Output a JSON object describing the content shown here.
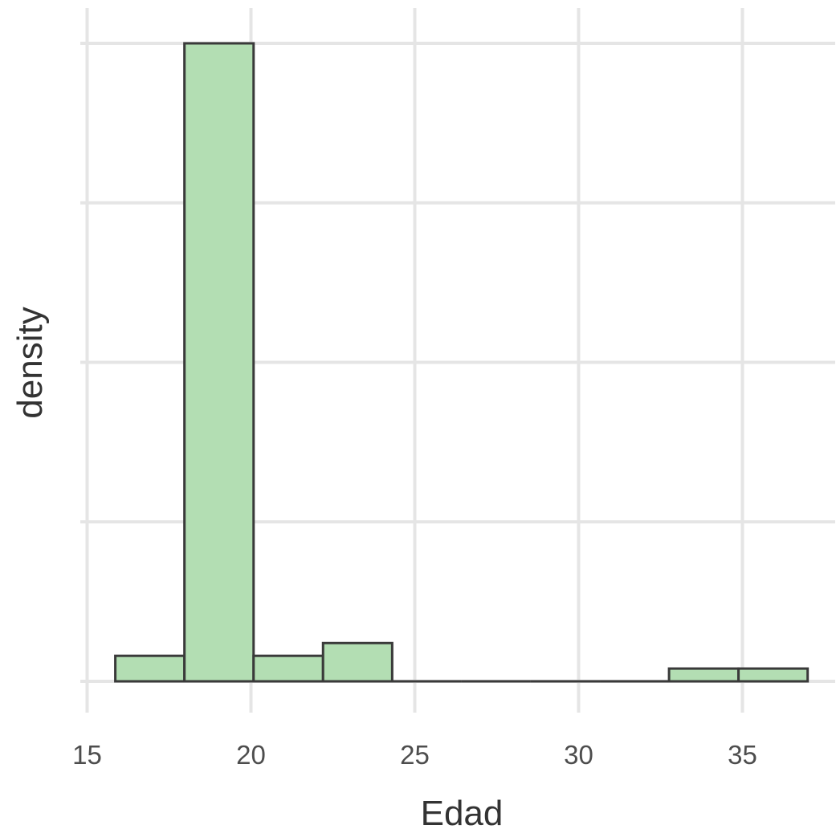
{
  "chart_data": {
    "type": "bar",
    "subtype": "histogram",
    "xlabel": "Edad",
    "ylabel": "density",
    "xlim": [
      15,
      37
    ],
    "x_ticks": [
      15,
      20,
      25,
      30,
      35
    ],
    "y_ticks_shown": false,
    "ylim": [
      0,
      1
    ],
    "grid": true,
    "bar_fill": "#b3deb3",
    "bar_edge": "#3a3a3a",
    "bins": [
      {
        "x0": 15.86,
        "x1": 17.97,
        "density": 0.04
      },
      {
        "x0": 17.97,
        "x1": 20.08,
        "density": 1.0
      },
      {
        "x0": 20.08,
        "x1": 22.2,
        "density": 0.04
      },
      {
        "x0": 22.2,
        "x1": 24.31,
        "density": 0.06
      },
      {
        "x0": 24.31,
        "x1": 26.42,
        "density": 0
      },
      {
        "x0": 26.42,
        "x1": 28.54,
        "density": 0
      },
      {
        "x0": 28.54,
        "x1": 30.65,
        "density": 0
      },
      {
        "x0": 30.65,
        "x1": 32.76,
        "density": 0
      },
      {
        "x0": 32.76,
        "x1": 34.88,
        "density": 0.02
      },
      {
        "x0": 34.88,
        "x1": 36.99,
        "density": 0.02
      }
    ]
  }
}
